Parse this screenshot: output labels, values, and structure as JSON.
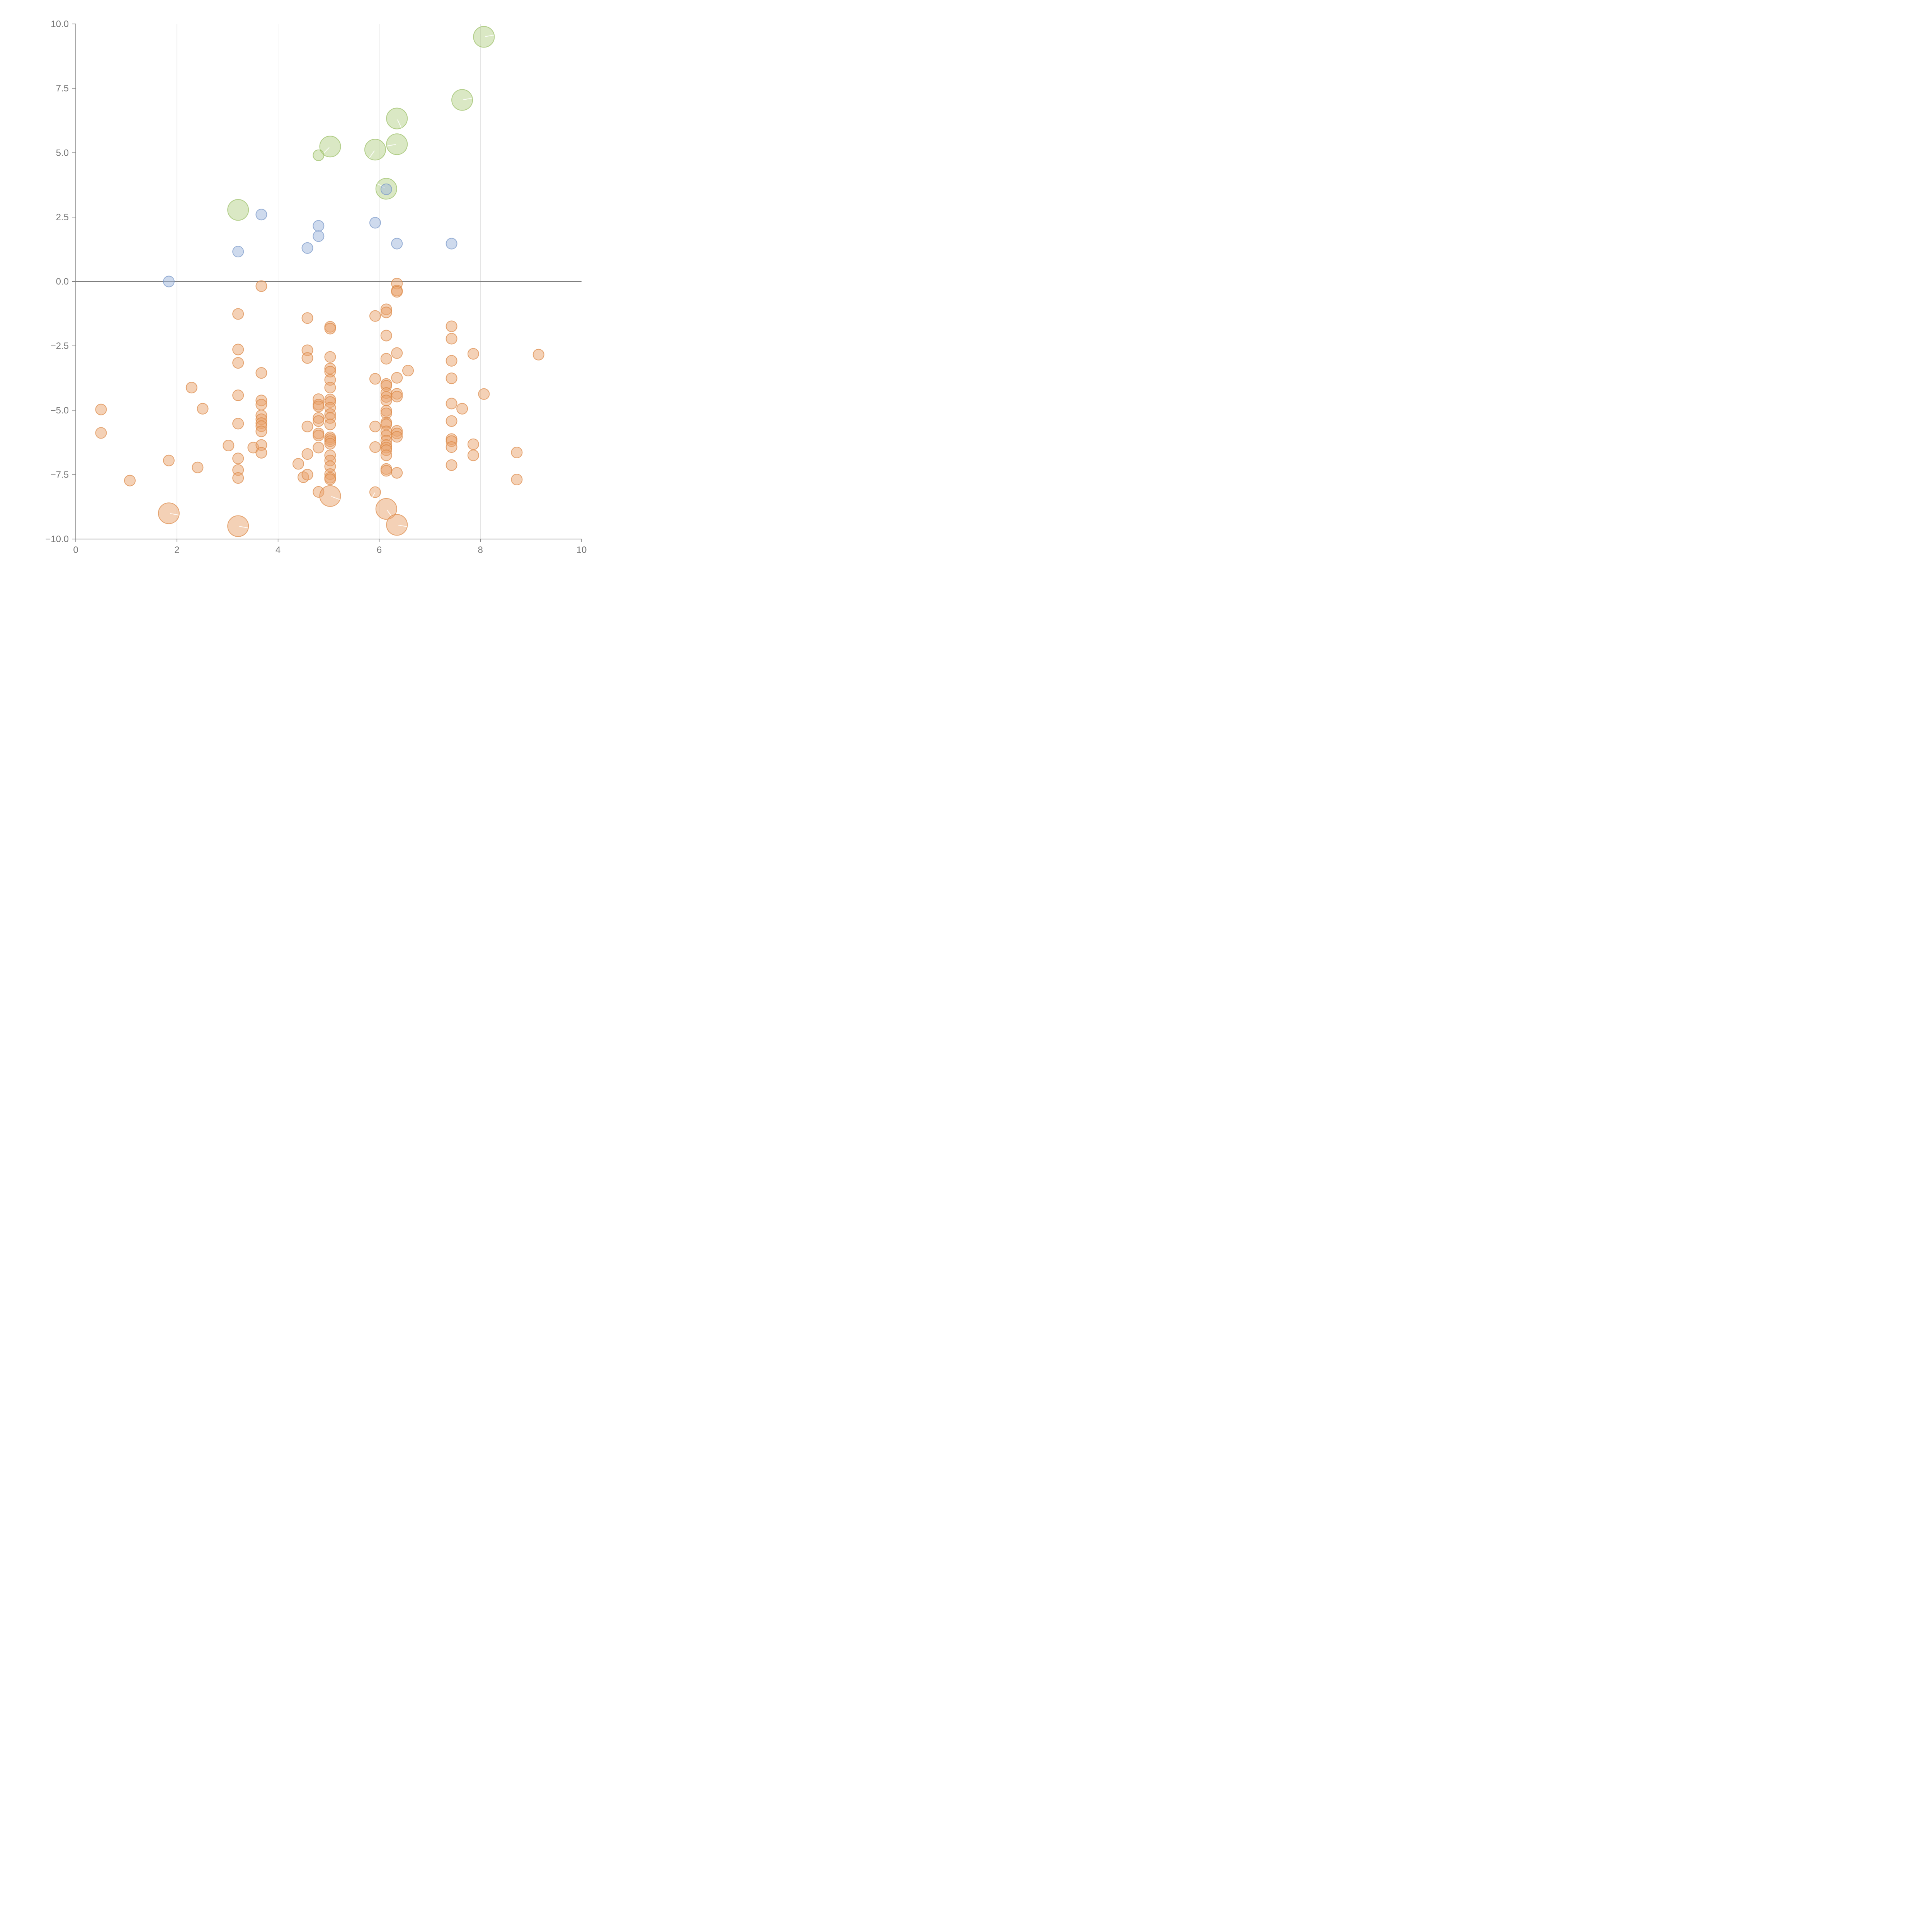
{
  "chart_data": {
    "type": "scatter",
    "title": "",
    "xlabel": "",
    "ylabel": "",
    "xlim": [
      0,
      10
    ],
    "ylim": [
      -10,
      10
    ],
    "x_ticks": [
      "0",
      "2",
      "4",
      "6",
      "8",
      "10"
    ],
    "y_ticks": [
      "10.0",
      "7.5",
      "5.0",
      "2.5",
      "0.0",
      "−2.5",
      "−5.0",
      "−7.5",
      "−10.0"
    ],
    "x_tick_values": [
      0,
      2,
      4,
      6,
      8,
      10
    ],
    "y_tick_values": [
      10,
      7.5,
      5,
      2.5,
      0,
      -2.5,
      -5,
      -7.5,
      -10
    ],
    "vertical_grid": true,
    "zero_line": true,
    "series": [
      {
        "name": "green",
        "color": "#b5d18a",
        "stroke": "#98bd63",
        "points": [
          {
            "x": 8.07,
            "y": 9.5,
            "size": 2.7,
            "angle": 10
          },
          {
            "x": 7.64,
            "y": 7.05,
            "size": 2.7,
            "angle": 10
          },
          {
            "x": 6.35,
            "y": 6.33,
            "size": 2.7,
            "angle": -65
          },
          {
            "x": 5.03,
            "y": 5.24,
            "size": 2.7,
            "angle": 225
          },
          {
            "x": 5.92,
            "y": 5.12,
            "size": 2.7,
            "angle": 235
          },
          {
            "x": 6.35,
            "y": 5.33,
            "size": 2.7,
            "angle": 190
          },
          {
            "x": 4.8,
            "y": 4.9,
            "size": 1.4
          },
          {
            "x": 6.14,
            "y": 3.6,
            "size": 2.7,
            "angle": 150
          },
          {
            "x": 3.21,
            "y": 2.78,
            "size": 2.7
          }
        ]
      },
      {
        "name": "blue",
        "color": "#9db5db",
        "stroke": "#7696c8",
        "points": [
          {
            "x": 1.84,
            "y": 0.0,
            "size": 1.4
          },
          {
            "x": 3.21,
            "y": 1.16,
            "size": 1.4
          },
          {
            "x": 3.67,
            "y": 2.6,
            "size": 1.4
          },
          {
            "x": 4.58,
            "y": 1.3,
            "size": 1.4
          },
          {
            "x": 4.8,
            "y": 2.16,
            "size": 1.4
          },
          {
            "x": 4.8,
            "y": 1.76,
            "size": 1.4
          },
          {
            "x": 5.92,
            "y": 2.28,
            "size": 1.4
          },
          {
            "x": 6.14,
            "y": 3.58,
            "size": 1.4
          },
          {
            "x": 6.35,
            "y": 1.47,
            "size": 1.4
          },
          {
            "x": 7.43,
            "y": 1.47,
            "size": 1.4
          }
        ]
      },
      {
        "name": "orange",
        "color": "#e9a46d",
        "stroke": "#db8745",
        "points": [
          {
            "x": 0.5,
            "y": -4.97,
            "size": 1.4
          },
          {
            "x": 0.5,
            "y": -5.88,
            "size": 1.4
          },
          {
            "x": 1.07,
            "y": -7.73,
            "size": 1.4
          },
          {
            "x": 1.84,
            "y": -6.95,
            "size": 1.4
          },
          {
            "x": 2.29,
            "y": -4.12,
            "size": 1.4
          },
          {
            "x": 2.41,
            "y": -7.22,
            "size": 1.4
          },
          {
            "x": 2.51,
            "y": -4.94,
            "size": 1.4
          },
          {
            "x": 3.02,
            "y": -6.37,
            "size": 1.4
          },
          {
            "x": 3.21,
            "y": -1.26,
            "size": 1.4
          },
          {
            "x": 3.21,
            "y": -2.64,
            "size": 1.4
          },
          {
            "x": 3.21,
            "y": -3.16,
            "size": 1.4
          },
          {
            "x": 3.21,
            "y": -4.42,
            "size": 1.4
          },
          {
            "x": 3.21,
            "y": -5.52,
            "size": 1.4
          },
          {
            "x": 3.21,
            "y": -6.87,
            "size": 1.4
          },
          {
            "x": 3.21,
            "y": -7.32,
            "size": 1.4
          },
          {
            "x": 3.21,
            "y": -7.63,
            "size": 1.4
          },
          {
            "x": 3.51,
            "y": -6.45,
            "size": 1.4
          },
          {
            "x": 3.67,
            "y": -0.18,
            "size": 1.4
          },
          {
            "x": 3.67,
            "y": -3.55,
            "size": 1.4
          },
          {
            "x": 3.67,
            "y": -4.62,
            "size": 1.4
          },
          {
            "x": 3.67,
            "y": -4.78,
            "size": 1.4
          },
          {
            "x": 3.67,
            "y": -5.2,
            "size": 1.4
          },
          {
            "x": 3.67,
            "y": -5.35,
            "size": 1.4
          },
          {
            "x": 3.67,
            "y": -5.5,
            "size": 1.4
          },
          {
            "x": 3.67,
            "y": -5.62,
            "size": 1.4
          },
          {
            "x": 3.67,
            "y": -5.82,
            "size": 1.4
          },
          {
            "x": 3.67,
            "y": -6.35,
            "size": 1.4
          },
          {
            "x": 3.67,
            "y": -6.65,
            "size": 1.4
          },
          {
            "x": 4.4,
            "y": -7.08,
            "size": 1.4
          },
          {
            "x": 4.5,
            "y": -7.6,
            "size": 1.4
          },
          {
            "x": 4.58,
            "y": -1.42,
            "size": 1.4
          },
          {
            "x": 4.58,
            "y": -2.67,
            "size": 1.4
          },
          {
            "x": 4.58,
            "y": -2.97,
            "size": 1.4
          },
          {
            "x": 4.58,
            "y": -5.63,
            "size": 1.4
          },
          {
            "x": 4.58,
            "y": -6.7,
            "size": 1.4
          },
          {
            "x": 4.58,
            "y": -7.5,
            "size": 1.4
          },
          {
            "x": 4.8,
            "y": -4.57,
            "size": 1.4
          },
          {
            "x": 4.8,
            "y": -4.78,
            "size": 1.4
          },
          {
            "x": 4.8,
            "y": -4.85,
            "size": 1.4
          },
          {
            "x": 4.8,
            "y": -5.3,
            "size": 1.4
          },
          {
            "x": 4.8,
            "y": -5.42,
            "size": 1.4
          },
          {
            "x": 4.8,
            "y": -5.9,
            "size": 1.4
          },
          {
            "x": 4.8,
            "y": -5.98,
            "size": 1.4
          },
          {
            "x": 4.8,
            "y": -6.45,
            "size": 1.4
          },
          {
            "x": 4.8,
            "y": -8.17,
            "size": 1.4
          },
          {
            "x": 5.03,
            "y": -1.76,
            "size": 1.4
          },
          {
            "x": 5.03,
            "y": -1.83,
            "size": 1.4
          },
          {
            "x": 5.03,
            "y": -2.93,
            "size": 1.4
          },
          {
            "x": 5.03,
            "y": -3.38,
            "size": 1.4
          },
          {
            "x": 5.03,
            "y": -3.5,
            "size": 1.4
          },
          {
            "x": 5.03,
            "y": -3.82,
            "size": 1.4
          },
          {
            "x": 5.03,
            "y": -4.12,
            "size": 1.4
          },
          {
            "x": 5.03,
            "y": -4.58,
            "size": 1.4
          },
          {
            "x": 5.03,
            "y": -4.68,
            "size": 1.4
          },
          {
            "x": 5.03,
            "y": -4.9,
            "size": 1.4
          },
          {
            "x": 5.03,
            "y": -5.15,
            "size": 1.4
          },
          {
            "x": 5.03,
            "y": -5.3,
            "size": 1.4
          },
          {
            "x": 5.03,
            "y": -5.55,
            "size": 1.4
          },
          {
            "x": 5.03,
            "y": -6.05,
            "size": 1.4
          },
          {
            "x": 5.03,
            "y": -6.12,
            "size": 1.4
          },
          {
            "x": 5.03,
            "y": -6.2,
            "size": 1.4
          },
          {
            "x": 5.03,
            "y": -6.3,
            "size": 1.4
          },
          {
            "x": 5.03,
            "y": -6.75,
            "size": 1.4
          },
          {
            "x": 5.03,
            "y": -6.95,
            "size": 1.4
          },
          {
            "x": 5.03,
            "y": -7.18,
            "size": 1.4
          },
          {
            "x": 5.03,
            "y": -7.48,
            "size": 1.4
          },
          {
            "x": 5.03,
            "y": -7.62,
            "size": 1.4
          },
          {
            "x": 5.03,
            "y": -7.68,
            "size": 1.4
          },
          {
            "x": 5.03,
            "y": -8.33,
            "size": 2.7,
            "angle": -20
          },
          {
            "x": 5.92,
            "y": -1.34,
            "size": 1.4
          },
          {
            "x": 5.92,
            "y": -3.78,
            "size": 1.4
          },
          {
            "x": 5.92,
            "y": -5.63,
            "size": 1.4
          },
          {
            "x": 5.92,
            "y": -6.43,
            "size": 1.4
          },
          {
            "x": 5.92,
            "y": -8.18,
            "size": 1.4,
            "angle": 240
          },
          {
            "x": 6.14,
            "y": -1.08,
            "size": 1.4
          },
          {
            "x": 6.14,
            "y": -1.2,
            "size": 1.4
          },
          {
            "x": 6.14,
            "y": -2.1,
            "size": 1.4
          },
          {
            "x": 6.14,
            "y": -3.0,
            "size": 1.4
          },
          {
            "x": 6.14,
            "y": -3.98,
            "size": 1.4
          },
          {
            "x": 6.14,
            "y": -4.05,
            "size": 1.4
          },
          {
            "x": 6.14,
            "y": -4.33,
            "size": 1.4
          },
          {
            "x": 6.14,
            "y": -4.48,
            "size": 1.4
          },
          {
            "x": 6.14,
            "y": -4.62,
            "size": 1.4
          },
          {
            "x": 6.14,
            "y": -5.02,
            "size": 1.4
          },
          {
            "x": 6.14,
            "y": -5.12,
            "size": 1.4
          },
          {
            "x": 6.14,
            "y": -5.48,
            "size": 1.4
          },
          {
            "x": 6.14,
            "y": -5.55,
            "size": 1.4
          },
          {
            "x": 6.14,
            "y": -5.82,
            "size": 1.4
          },
          {
            "x": 6.14,
            "y": -5.98,
            "size": 1.4
          },
          {
            "x": 6.14,
            "y": -6.18,
            "size": 1.4
          },
          {
            "x": 6.14,
            "y": -6.35,
            "size": 1.4
          },
          {
            "x": 6.14,
            "y": -6.45,
            "size": 1.4
          },
          {
            "x": 6.14,
            "y": -6.55,
            "size": 1.4
          },
          {
            "x": 6.14,
            "y": -6.75,
            "size": 1.4
          },
          {
            "x": 6.14,
            "y": -7.28,
            "size": 1.4
          },
          {
            "x": 6.14,
            "y": -7.35,
            "size": 1.4
          },
          {
            "x": 6.14,
            "y": -8.83,
            "size": 2.7,
            "angle": -55
          },
          {
            "x": 6.35,
            "y": -0.08,
            "size": 1.4
          },
          {
            "x": 6.35,
            "y": -0.35,
            "size": 1.4
          },
          {
            "x": 6.35,
            "y": -0.4,
            "size": 1.4
          },
          {
            "x": 6.35,
            "y": -2.78,
            "size": 1.4
          },
          {
            "x": 6.35,
            "y": -3.74,
            "size": 1.4
          },
          {
            "x": 6.35,
            "y": -4.36,
            "size": 1.4
          },
          {
            "x": 6.35,
            "y": -4.47,
            "size": 1.4
          },
          {
            "x": 6.35,
            "y": -5.8,
            "size": 1.4
          },
          {
            "x": 6.35,
            "y": -5.9,
            "size": 1.4
          },
          {
            "x": 6.35,
            "y": -6.03,
            "size": 1.4
          },
          {
            "x": 6.35,
            "y": -7.43,
            "size": 1.4
          },
          {
            "x": 6.35,
            "y": -9.45,
            "size": 2.7,
            "angle": -10
          },
          {
            "x": 6.57,
            "y": -3.46,
            "size": 1.4
          },
          {
            "x": 7.43,
            "y": -1.74,
            "size": 1.4
          },
          {
            "x": 7.43,
            "y": -2.22,
            "size": 1.4
          },
          {
            "x": 7.43,
            "y": -3.08,
            "size": 1.4
          },
          {
            "x": 7.43,
            "y": -3.76,
            "size": 1.4
          },
          {
            "x": 7.43,
            "y": -4.74,
            "size": 1.4
          },
          {
            "x": 7.43,
            "y": -5.42,
            "size": 1.4
          },
          {
            "x": 7.43,
            "y": -6.12,
            "size": 1.4
          },
          {
            "x": 7.43,
            "y": -6.2,
            "size": 1.4
          },
          {
            "x": 7.43,
            "y": -6.43,
            "size": 1.4
          },
          {
            "x": 7.43,
            "y": -7.13,
            "size": 1.4
          },
          {
            "x": 7.64,
            "y": -4.94,
            "size": 1.4
          },
          {
            "x": 7.86,
            "y": -2.81,
            "size": 1.4
          },
          {
            "x": 7.86,
            "y": -6.32,
            "size": 1.4
          },
          {
            "x": 7.86,
            "y": -6.75,
            "size": 1.4
          },
          {
            "x": 8.07,
            "y": -4.37,
            "size": 1.4
          },
          {
            "x": 8.72,
            "y": -6.64,
            "size": 1.4
          },
          {
            "x": 8.72,
            "y": -7.69,
            "size": 1.4
          },
          {
            "x": 9.15,
            "y": -2.84,
            "size": 1.4
          },
          {
            "x": 1.84,
            "y": -9.0,
            "size": 2.7,
            "angle": -10
          },
          {
            "x": 3.21,
            "y": -9.5,
            "size": 2.7,
            "angle": -10
          }
        ]
      }
    ]
  }
}
